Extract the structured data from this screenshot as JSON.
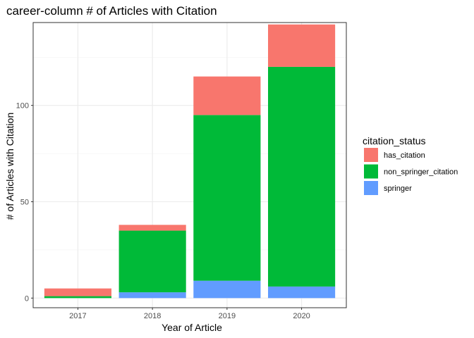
{
  "chart_data": {
    "type": "bar",
    "stacked": true,
    "title": "career-column # of Articles with Citation",
    "xlabel": "Year of Article",
    "ylabel": "# of Articles with Citation",
    "categories": [
      "2017",
      "2018",
      "2019",
      "2020"
    ],
    "series": [
      {
        "name": "has_citation",
        "color": "#F8766D",
        "values": [
          4,
          3,
          20,
          22
        ]
      },
      {
        "name": "non_springer_citation",
        "color": "#00BA38",
        "values": [
          1,
          32,
          86,
          114
        ]
      },
      {
        "name": "springer",
        "color": "#619CFF",
        "values": [
          0,
          3,
          9,
          6
        ]
      }
    ],
    "stack_order_bottom_to_top": [
      "springer",
      "non_springer_citation",
      "has_citation"
    ],
    "ylim": [
      -5,
      143
    ],
    "yticks": [
      0,
      50,
      100
    ],
    "legend_title": "citation_status",
    "legend_position": "right",
    "grid": true,
    "theme": "bw"
  }
}
